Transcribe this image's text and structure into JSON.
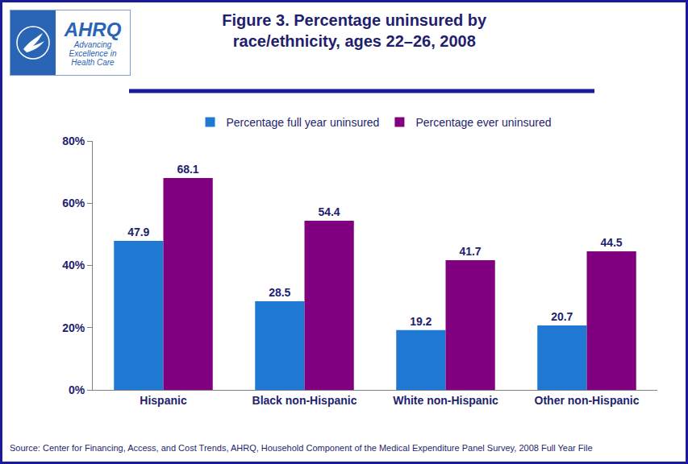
{
  "chart_data": {
    "type": "bar",
    "title": "Figure 3. Percentage uninsured by race/ethnicity, ages 22–26, 2008",
    "title_lines": [
      "Figure 3. Percentage uninsured by",
      "race/ethnicity, ages 22–26, 2008"
    ],
    "categories": [
      "Hispanic",
      "Black non-Hispanic",
      "White non-Hispanic",
      "Other non-Hispanic"
    ],
    "series": [
      {
        "name": "Percentage full year uninsured",
        "color": "#1f78d1",
        "values": [
          47.9,
          28.5,
          19.2,
          20.7
        ]
      },
      {
        "name": "Percentage ever uninsured",
        "color": "#800080",
        "values": [
          68.1,
          54.4,
          41.7,
          44.5
        ]
      }
    ],
    "ylim": [
      0,
      80
    ],
    "yticks": [
      {
        "value": 0,
        "label": "0%"
      },
      {
        "value": 20,
        "label": "20%"
      },
      {
        "value": 40,
        "label": "40%"
      },
      {
        "value": 60,
        "label": "60%"
      },
      {
        "value": 80,
        "label": "80%"
      }
    ],
    "grid": false,
    "legend": "top",
    "data_labels": true,
    "annotations": [
      "Source: Center for Financing, Access, and Cost Trends, AHRQ, Household Component of the Medical Expenditure Panel Survey, 2008 Full Year File"
    ],
    "logo": {
      "name": "AHRQ",
      "tagline": [
        "Advancing",
        "Excellence in",
        "Health Care"
      ]
    }
  }
}
